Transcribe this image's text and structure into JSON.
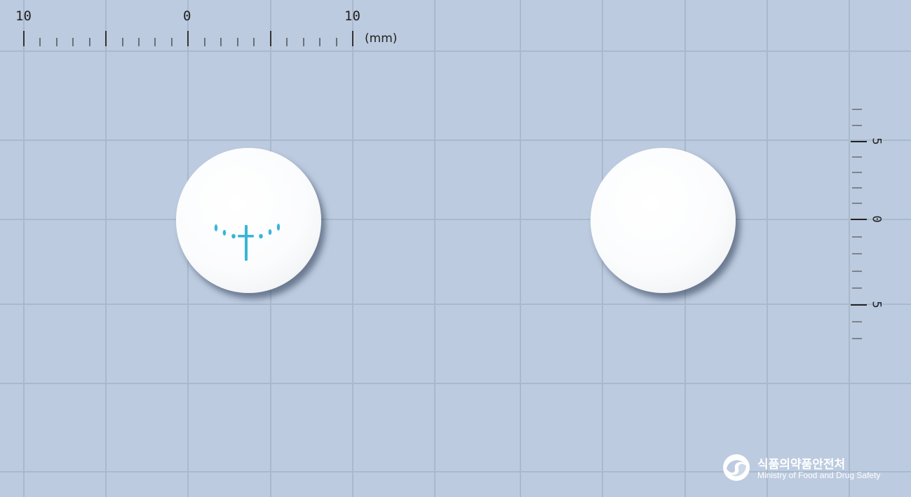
{
  "ruler": {
    "top_labels": [
      "10",
      "0",
      "10"
    ],
    "unit": "(mm)",
    "side_labels": [
      "5",
      "0",
      "5"
    ]
  },
  "tablets": [
    {
      "side": "front",
      "color": "white",
      "shape": "round",
      "imprint_color": "#39b5d8"
    },
    {
      "side": "back",
      "color": "white",
      "shape": "round"
    }
  ],
  "logo": {
    "icon": "government-emblem-icon",
    "korean": "식품의약품안전처",
    "english": "Ministry of Food and Drug Safety"
  }
}
